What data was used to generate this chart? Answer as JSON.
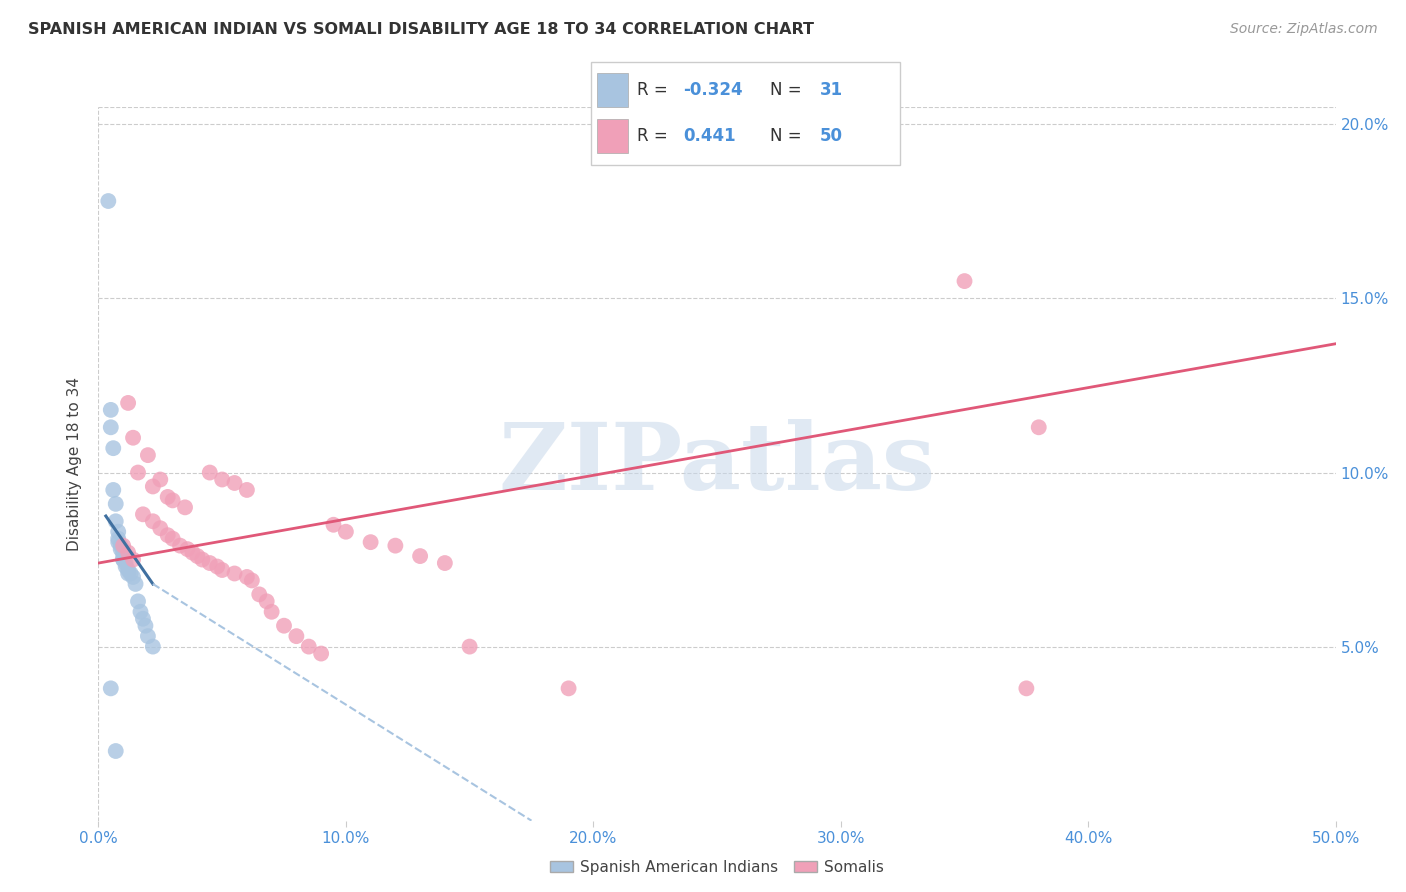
{
  "title": "SPANISH AMERICAN INDIAN VS SOMALI DISABILITY AGE 18 TO 34 CORRELATION CHART",
  "source": "Source: ZipAtlas.com",
  "ylabel": "Disability Age 18 to 34",
  "xlim": [
    0.0,
    0.5
  ],
  "ylim": [
    0.0,
    0.205
  ],
  "xticks": [
    0.0,
    0.1,
    0.2,
    0.3,
    0.4,
    0.5
  ],
  "xticklabels": [
    "0.0%",
    "10.0%",
    "20.0%",
    "30.0%",
    "40.0%",
    "50.0%"
  ],
  "yticks": [
    0.05,
    0.1,
    0.15,
    0.2
  ],
  "yticklabels": [
    "5.0%",
    "10.0%",
    "15.0%",
    "20.0%"
  ],
  "blue_R": -0.324,
  "blue_N": 31,
  "pink_R": 0.441,
  "pink_N": 50,
  "blue_color": "#a8c4e0",
  "pink_color": "#f0a0b8",
  "blue_line_color": "#4070a0",
  "pink_line_color": "#e05878",
  "watermark_text": "ZIPatlas",
  "blue_scatter": [
    [
      0.004,
      0.178
    ],
    [
      0.005,
      0.118
    ],
    [
      0.005,
      0.113
    ],
    [
      0.006,
      0.107
    ],
    [
      0.006,
      0.095
    ],
    [
      0.007,
      0.091
    ],
    [
      0.007,
      0.086
    ],
    [
      0.008,
      0.083
    ],
    [
      0.008,
      0.081
    ],
    [
      0.008,
      0.08
    ],
    [
      0.009,
      0.079
    ],
    [
      0.009,
      0.078
    ],
    [
      0.01,
      0.077
    ],
    [
      0.01,
      0.076
    ],
    [
      0.01,
      0.075
    ],
    [
      0.01,
      0.075
    ],
    [
      0.011,
      0.074
    ],
    [
      0.011,
      0.073
    ],
    [
      0.012,
      0.072
    ],
    [
      0.012,
      0.071
    ],
    [
      0.013,
      0.071
    ],
    [
      0.014,
      0.07
    ],
    [
      0.015,
      0.068
    ],
    [
      0.016,
      0.063
    ],
    [
      0.017,
      0.06
    ],
    [
      0.018,
      0.058
    ],
    [
      0.019,
      0.056
    ],
    [
      0.02,
      0.053
    ],
    [
      0.022,
      0.05
    ],
    [
      0.005,
      0.038
    ],
    [
      0.007,
      0.02
    ]
  ],
  "pink_scatter": [
    [
      0.012,
      0.12
    ],
    [
      0.014,
      0.11
    ],
    [
      0.02,
      0.105
    ],
    [
      0.016,
      0.1
    ],
    [
      0.025,
      0.098
    ],
    [
      0.022,
      0.096
    ],
    [
      0.028,
      0.093
    ],
    [
      0.03,
      0.092
    ],
    [
      0.035,
      0.09
    ],
    [
      0.018,
      0.088
    ],
    [
      0.022,
      0.086
    ],
    [
      0.025,
      0.084
    ],
    [
      0.028,
      0.082
    ],
    [
      0.03,
      0.081
    ],
    [
      0.033,
      0.079
    ],
    [
      0.036,
      0.078
    ],
    [
      0.038,
      0.077
    ],
    [
      0.04,
      0.076
    ],
    [
      0.042,
      0.075
    ],
    [
      0.045,
      0.074
    ],
    [
      0.048,
      0.073
    ],
    [
      0.05,
      0.072
    ],
    [
      0.055,
      0.071
    ],
    [
      0.06,
      0.07
    ],
    [
      0.062,
      0.069
    ],
    [
      0.065,
      0.065
    ],
    [
      0.068,
      0.063
    ],
    [
      0.07,
      0.06
    ],
    [
      0.075,
      0.056
    ],
    [
      0.08,
      0.053
    ],
    [
      0.085,
      0.05
    ],
    [
      0.09,
      0.048
    ],
    [
      0.01,
      0.079
    ],
    [
      0.012,
      0.077
    ],
    [
      0.014,
      0.075
    ],
    [
      0.045,
      0.1
    ],
    [
      0.05,
      0.098
    ],
    [
      0.055,
      0.097
    ],
    [
      0.06,
      0.095
    ],
    [
      0.35,
      0.155
    ],
    [
      0.38,
      0.113
    ],
    [
      0.375,
      0.038
    ],
    [
      0.095,
      0.085
    ],
    [
      0.1,
      0.083
    ],
    [
      0.11,
      0.08
    ],
    [
      0.12,
      0.079
    ],
    [
      0.13,
      0.076
    ],
    [
      0.14,
      0.074
    ],
    [
      0.15,
      0.05
    ],
    [
      0.19,
      0.038
    ]
  ],
  "blue_trendline_solid": [
    [
      0.003,
      0.0875
    ],
    [
      0.022,
      0.068
    ]
  ],
  "blue_trendline_dashed": [
    [
      0.022,
      0.068
    ],
    [
      0.175,
      0.0
    ]
  ],
  "pink_trendline": [
    [
      0.0,
      0.074
    ],
    [
      0.5,
      0.137
    ]
  ]
}
